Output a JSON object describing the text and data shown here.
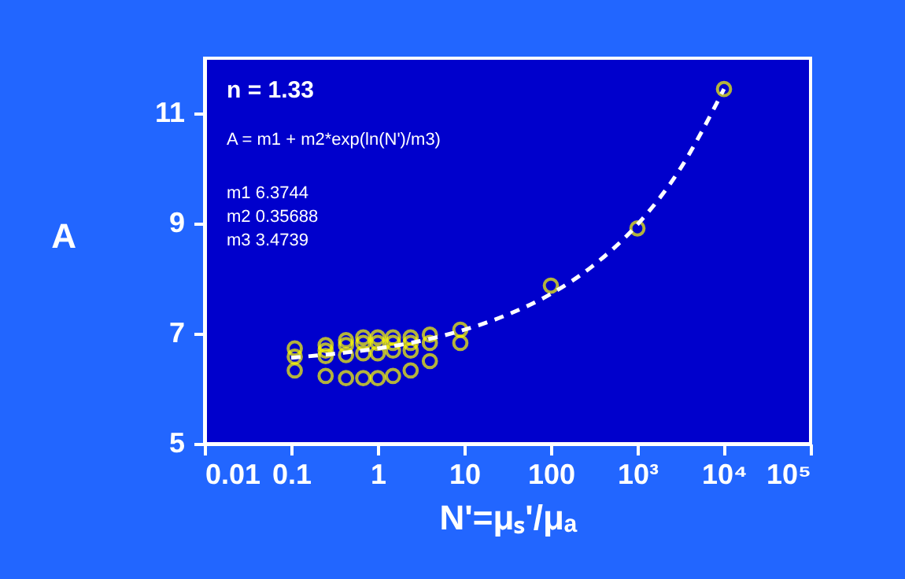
{
  "chart_data": {
    "type": "scatter",
    "xlabel": "N'=μₛ'/μₐ",
    "ylabel": "A",
    "annotations": [
      "n = 1.33",
      "A = m1 + m2*exp(ln(N')/m3)",
      "m1  6.3744",
      "m2  0.35688",
      "m3  3.4739"
    ],
    "log": "x",
    "xlim": [
      0.01,
      100000
    ],
    "xticks": [
      0.01,
      0.1,
      1,
      10,
      100,
      {
        "value": 1000,
        "label": "10³"
      },
      {
        "value": 10000,
        "label": "10⁴"
      },
      {
        "value": 100000,
        "label": "10⁵"
      }
    ],
    "ylim": [
      5,
      12
    ],
    "yticks": [
      5,
      7,
      9,
      11
    ],
    "series": [
      {
        "color": "#ffff00",
        "marker": "circle",
        "x": [
          0.11,
          0.11,
          0.11,
          0.25,
          0.25,
          0.25,
          0.25,
          0.43,
          0.43,
          0.43,
          0.43,
          0.68,
          0.68,
          0.68,
          0.68,
          1,
          1,
          1,
          1,
          1.5,
          1.5,
          1.5,
          1.5,
          2.4,
          2.4,
          2.4,
          2.4,
          4,
          4,
          4,
          9,
          9,
          100,
          1000,
          10000
        ],
        "values": [
          6.73,
          6.58,
          6.33,
          6.79,
          6.69,
          6.59,
          6.23,
          6.88,
          6.79,
          6.61,
          6.19,
          6.93,
          6.83,
          6.64,
          6.19,
          6.93,
          6.83,
          6.64,
          6.19,
          6.93,
          6.83,
          6.69,
          6.23,
          6.93,
          6.83,
          6.69,
          6.33,
          6.98,
          6.83,
          6.5,
          7.07,
          6.83,
          7.87,
          8.91,
          11.44
        ]
      },
      {
        "type": "line",
        "color": "#ffffff",
        "line_style": "dashed",
        "x": [
          0.1,
          0.3,
          1,
          3,
          10,
          30,
          100,
          300,
          1000,
          3000,
          10000
        ],
        "values": [
          6.56,
          6.63,
          6.73,
          6.86,
          7.07,
          7.33,
          7.72,
          8.22,
          8.98,
          9.95,
          11.44
        ]
      }
    ]
  }
}
